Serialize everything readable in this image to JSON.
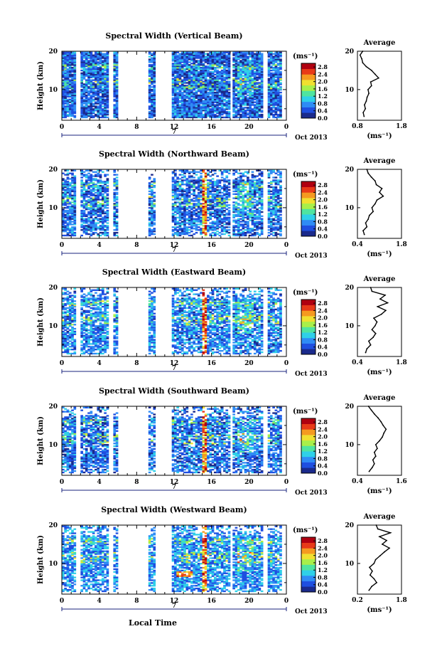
{
  "chart_data": {
    "type": "heatmap",
    "xlabel": "Local Time",
    "ylabel": "Height (km)",
    "day_label": "7",
    "month_label": "Oct 2013",
    "xticks": [
      "0",
      "4",
      "8",
      "12",
      "16",
      "20",
      "0"
    ],
    "xlim": [
      0,
      24
    ],
    "ylim": [
      2,
      20
    ],
    "yticks": [
      "10",
      "20"
    ],
    "colorbar": {
      "unit": "(ms⁻¹)",
      "ticks": [
        "0.0",
        "0.4",
        "0.8",
        "1.2",
        "1.6",
        "2.0",
        "2.4",
        "2.8"
      ],
      "range": [
        0,
        3.0
      ],
      "colors": [
        "#1a2a8c",
        "#1f4fe0",
        "#2f8cf5",
        "#2fd0e8",
        "#4fe4a0",
        "#a8ef4a",
        "#f0e030",
        "#f59a20",
        "#e83a18",
        "#b00010"
      ]
    },
    "data_gaps_hours": [
      [
        1.4,
        1.9
      ],
      [
        5.0,
        5.3
      ],
      [
        5.8,
        9.2
      ],
      [
        9.9,
        11.7
      ],
      [
        17.8,
        18.1
      ],
      [
        21.5,
        21.9
      ],
      [
        23.5,
        24
      ]
    ],
    "panels": [
      {
        "title": "Spectral Width (Vertical Beam)",
        "base": 0.55,
        "avg": {
          "title": "Average",
          "xticks": [
            "0.8",
            "1.8"
          ],
          "xlim": [
            0.8,
            1.8
          ],
          "xunit": "(ms⁻¹)",
          "heights": [
            3,
            4,
            5,
            6,
            7,
            8,
            9,
            10,
            11,
            12,
            13,
            14,
            15,
            16,
            17,
            18,
            19,
            20
          ],
          "values": [
            0.95,
            0.93,
            0.98,
            0.96,
            1.0,
            1.02,
            1.06,
            1.04,
            1.12,
            1.1,
            1.28,
            1.2,
            1.12,
            1.0,
            0.92,
            0.9,
            0.86,
            0.92
          ]
        }
      },
      {
        "title": "Spectral Width (Northward Beam)",
        "base": 0.6,
        "avg": {
          "title": "Average",
          "xticks": [
            "0.4",
            "1.8"
          ],
          "xlim": [
            0.4,
            1.8
          ],
          "xunit": "(ms⁻¹)",
          "heights": [
            3,
            4,
            5,
            6,
            7,
            8,
            9,
            10,
            11,
            12,
            13,
            14,
            15,
            16,
            17,
            18,
            19,
            20
          ],
          "values": [
            0.62,
            0.58,
            0.7,
            0.66,
            0.74,
            0.78,
            0.9,
            0.86,
            0.96,
            1.02,
            1.22,
            1.1,
            1.18,
            1.0,
            0.96,
            0.84,
            0.74,
            0.7
          ]
        }
      },
      {
        "title": "Spectral Width (Eastward Beam)",
        "base": 0.7,
        "avg": {
          "title": "Average",
          "xticks": [
            "0.4",
            "1.8"
          ],
          "xlim": [
            0.4,
            1.8
          ],
          "xunit": "(ms⁻¹)",
          "heights": [
            3,
            4,
            5,
            6,
            7,
            8,
            9,
            10,
            11,
            12,
            13,
            14,
            15,
            16,
            17,
            18,
            19,
            20
          ],
          "values": [
            0.66,
            0.7,
            0.82,
            0.76,
            0.9,
            0.98,
            0.86,
            0.96,
            1.02,
            0.92,
            1.16,
            1.3,
            1.04,
            1.36,
            1.12,
            1.28,
            0.86,
            0.82
          ]
        }
      },
      {
        "title": "Spectral Width (Southward Beam)",
        "base": 0.6,
        "avg": {
          "title": "Average",
          "xticks": [
            "0.4",
            "1.6"
          ],
          "xlim": [
            0.4,
            1.6
          ],
          "xunit": "(ms⁻¹)",
          "heights": [
            3,
            4,
            5,
            6,
            7,
            8,
            9,
            10,
            11,
            12,
            13,
            14,
            15,
            16,
            17,
            18,
            19,
            20
          ],
          "values": [
            0.72,
            0.8,
            0.86,
            0.82,
            0.9,
            0.86,
            0.94,
            0.9,
            1.0,
            1.08,
            1.12,
            1.18,
            1.1,
            1.04,
            0.96,
            0.86,
            0.78,
            0.7
          ]
        }
      },
      {
        "title": "Spectral Width (Westward Beam)",
        "base": 0.75,
        "avg": {
          "title": "Average",
          "xticks": [
            "0.2",
            "1.8"
          ],
          "xlim": [
            0.2,
            1.8
          ],
          "xunit": "(ms⁻¹)",
          "heights": [
            3,
            4,
            5,
            6,
            7,
            8,
            9,
            10,
            11,
            12,
            13,
            14,
            15,
            16,
            17,
            18,
            19,
            20
          ],
          "values": [
            0.62,
            0.72,
            0.9,
            0.8,
            0.66,
            0.74,
            0.64,
            0.8,
            0.86,
            1.02,
            1.18,
            1.36,
            1.1,
            1.26,
            1.0,
            1.4,
            0.94,
            0.88
          ]
        }
      }
    ]
  }
}
